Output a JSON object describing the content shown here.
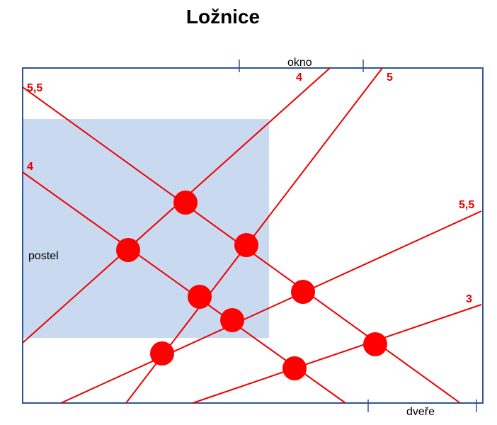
{
  "title": "Ložnice",
  "labels": {
    "window": "okno",
    "door": "dveře",
    "bed": "postel"
  },
  "line_labels": [
    "5,5",
    "4",
    "4",
    "5",
    "5,5",
    "3"
  ],
  "colors": {
    "lines": "#ee0000",
    "points": "#ff0000",
    "bed": "#c9d9f0",
    "wall": "#2f5597",
    "label_red": "#e60000"
  }
}
